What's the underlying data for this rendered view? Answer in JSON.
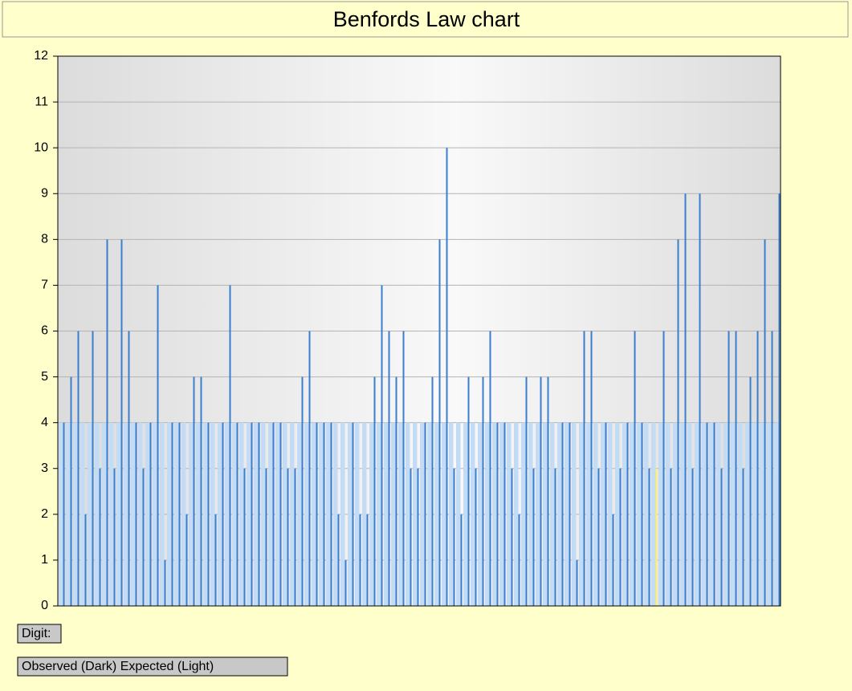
{
  "chart_data": {
    "type": "bar",
    "title": "Benfords Law chart",
    "x_label": "Digit:",
    "legend": "Observed (Dark) Expected (Light)",
    "categories": [
      null,
      null,
      null,
      null,
      null,
      null,
      null,
      null,
      null,
      null,
      null,
      null,
      null,
      null,
      null,
      null,
      null,
      null,
      null,
      null,
      null,
      null,
      null,
      null,
      null,
      null,
      null,
      null,
      null,
      null,
      null,
      null,
      null,
      null,
      null,
      null,
      null,
      null,
      null,
      null,
      null,
      null,
      null,
      null,
      null,
      null,
      null,
      null,
      null,
      null,
      null,
      null,
      null,
      null,
      null,
      null,
      null,
      null,
      null,
      null,
      null,
      null,
      null,
      null,
      null,
      null,
      null,
      null,
      null,
      null,
      null,
      null,
      null,
      null,
      null,
      null,
      null,
      null,
      null,
      null,
      null,
      null,
      null,
      null,
      null,
      null,
      null,
      null,
      null,
      null,
      null,
      null,
      null,
      null,
      null,
      null,
      null,
      null,
      null,
      null
    ],
    "series": [
      {
        "color": "#c4dbf6",
        "values": [
          4,
          4,
          4,
          4,
          4,
          4,
          4,
          4,
          4,
          4,
          4,
          4,
          4,
          4,
          4,
          4,
          4,
          4,
          4,
          4,
          4,
          4,
          4,
          4,
          4,
          4,
          4,
          4,
          4,
          4,
          4,
          4,
          4,
          4,
          4,
          4,
          4,
          4,
          4,
          4,
          4,
          4,
          4,
          4,
          4,
          4,
          4,
          4,
          4,
          4,
          4,
          4,
          4,
          4,
          4,
          4,
          4,
          4,
          4,
          4,
          4,
          4,
          4,
          4,
          4,
          4,
          4,
          4,
          4,
          4,
          4,
          4,
          4,
          4,
          4,
          4,
          4,
          4,
          4,
          4,
          4,
          4,
          4,
          4,
          4,
          4,
          4,
          4,
          4,
          4,
          4,
          4,
          4,
          4,
          4,
          4,
          4,
          4,
          4,
          4
        ]
      },
      {
        "color": "#3a7fcf",
        "values": [
          4,
          5,
          6,
          2,
          6,
          3,
          8,
          3,
          8,
          6,
          4,
          3,
          4,
          7,
          1,
          4,
          4,
          2,
          5,
          5,
          4,
          2,
          4,
          7,
          4,
          3,
          4,
          4,
          3,
          4,
          4,
          3,
          3,
          5,
          6,
          4,
          4,
          4,
          2,
          1,
          4,
          2,
          2,
          5,
          7,
          6,
          5,
          6,
          3,
          3,
          4,
          5,
          8,
          10,
          3,
          2,
          5,
          3,
          5,
          6,
          4,
          4,
          3,
          2,
          5,
          3,
          5,
          5,
          3,
          4,
          4,
          1,
          6,
          6,
          3,
          4,
          2,
          3,
          4,
          6,
          4,
          3,
          3,
          6,
          3,
          8,
          9,
          3,
          9,
          4,
          4,
          3,
          6,
          6,
          3,
          5,
          6,
          8,
          6,
          9
        ]
      }
    ],
    "highlight_index": 82,
    "highlight_color": "#fff36a",
    "ylim": [
      0,
      12
    ],
    "yticks": [
      0,
      1,
      2,
      3,
      4,
      5,
      6,
      7,
      8,
      9,
      10,
      11,
      12
    ],
    "grid": true
  }
}
